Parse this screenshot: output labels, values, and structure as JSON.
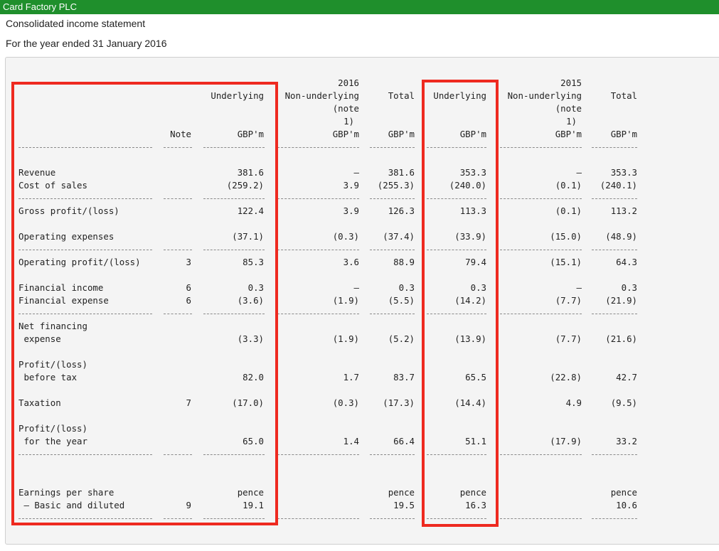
{
  "app": {
    "company": "Card Factory PLC",
    "statement_title": "Consolidated income statement",
    "period": "For the year ended 31 January 2016"
  },
  "header": {
    "year_2016": "2016",
    "year_2015": "2015",
    "note": "Note",
    "underlying": "Underlying",
    "non_underlying_1": "Non-underlying",
    "non_underlying_2": "(note",
    "non_underlying_3": "1)",
    "total": "Total",
    "unit": "GBP'm"
  },
  "rows": [
    {
      "label1": "Revenue",
      "label2": "",
      "note": "",
      "u16": "381.6",
      "n16": "–",
      "t16": "381.6",
      "u15": "353.3",
      "n15": "–",
      "t15": "353.3"
    },
    {
      "label1": "Cost of sales",
      "label2": "",
      "note": "",
      "u16": "(259.2)",
      "n16": "3.9",
      "t16": "(255.3)",
      "u15": "(240.0)",
      "n15": "(0.1)",
      "t15": "(240.1)"
    },
    {
      "label1": "Gross profit/(loss)",
      "label2": "",
      "note": "",
      "u16": "122.4",
      "n16": "3.9",
      "t16": "126.3",
      "u15": "113.3",
      "n15": "(0.1)",
      "t15": "113.2"
    },
    {
      "label1": "Operating expenses",
      "label2": "",
      "note": "",
      "u16": "(37.1)",
      "n16": "(0.3)",
      "t16": "(37.4)",
      "u15": "(33.9)",
      "n15": "(15.0)",
      "t15": "(48.9)"
    },
    {
      "label1": "Operating profit/(loss)",
      "label2": "",
      "note": "3",
      "u16": "85.3",
      "n16": "3.6",
      "t16": "88.9",
      "u15": "79.4",
      "n15": "(15.1)",
      "t15": "64.3"
    },
    {
      "label1": "Financial income",
      "label2": "",
      "note": "6",
      "u16": "0.3",
      "n16": "–",
      "t16": "0.3",
      "u15": "0.3",
      "n15": "–",
      "t15": "0.3"
    },
    {
      "label1": "Financial expense",
      "label2": "",
      "note": "6",
      "u16": "(3.6)",
      "n16": "(1.9)",
      "t16": "(5.5)",
      "u15": "(14.2)",
      "n15": "(7.7)",
      "t15": "(21.9)"
    },
    {
      "label1": "Net financing",
      "label2": " expense",
      "note": "",
      "u16": "(3.3)",
      "n16": "(1.9)",
      "t16": "(5.2)",
      "u15": "(13.9)",
      "n15": "(7.7)",
      "t15": "(21.6)"
    },
    {
      "label1": "Profit/(loss)",
      "label2": " before tax",
      "note": "",
      "u16": "82.0",
      "n16": "1.7",
      "t16": "83.7",
      "u15": "65.5",
      "n15": "(22.8)",
      "t15": "42.7"
    },
    {
      "label1": "Taxation",
      "label2": "",
      "note": "7",
      "u16": "(17.0)",
      "n16": "(0.3)",
      "t16": "(17.3)",
      "u15": "(14.4)",
      "n15": "4.9",
      "t15": "(9.5)"
    },
    {
      "label1": "Profit/(loss)",
      "label2": " for the year",
      "note": "",
      "u16": "65.0",
      "n16": "1.4",
      "t16": "66.4",
      "u15": "51.1",
      "n15": "(17.9)",
      "t15": "33.2"
    },
    {
      "label1": "Earnings per share",
      "label2": " – Basic and diluted",
      "note": "9",
      "u16": "19.1",
      "n16": "",
      "t16": "19.5",
      "u15": "16.3",
      "n15": "",
      "t15": "10.6"
    }
  ],
  "eps_unit": "pence",
  "highlight_color": "#ee2a20",
  "brand_color": "#1f8f2c"
}
